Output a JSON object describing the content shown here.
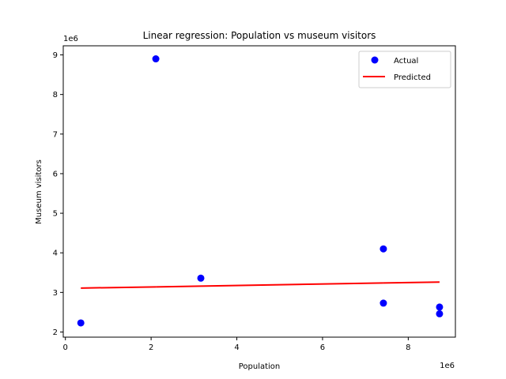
{
  "chart_data": {
    "type": "scatter",
    "title": "Linear regression: Population vs museum visitors",
    "xlabel": "Population",
    "ylabel": "Museum visitors",
    "x_offset_label": "1e6",
    "y_offset_label": "1e6",
    "xlim": [
      -0.05,
      9.1
    ],
    "ylim": [
      1.87,
      9.23
    ],
    "x_ticks": [
      0,
      2,
      4,
      6,
      8
    ],
    "x_tick_labels": [
      "0",
      "2",
      "4",
      "6",
      "8"
    ],
    "y_ticks": [
      2,
      3,
      4,
      5,
      6,
      7,
      8,
      9
    ],
    "y_tick_labels": [
      "2",
      "3",
      "4",
      "5",
      "6",
      "7",
      "8",
      "9"
    ],
    "grid": false,
    "legend": {
      "position": "top-right",
      "entries": [
        "Actual",
        "Predicted"
      ]
    },
    "series": [
      {
        "name": "Actual",
        "kind": "scatter",
        "color": "#0000ff",
        "points": [
          {
            "x": 0.36,
            "y": 2.23
          },
          {
            "x": 2.11,
            "y": 8.9
          },
          {
            "x": 3.16,
            "y": 3.36
          },
          {
            "x": 7.42,
            "y": 4.1
          },
          {
            "x": 7.42,
            "y": 2.73
          },
          {
            "x": 8.73,
            "y": 2.63
          },
          {
            "x": 8.73,
            "y": 2.46
          }
        ]
      },
      {
        "name": "Predicted",
        "kind": "line",
        "color": "#ff0000",
        "points": [
          {
            "x": 0.36,
            "y": 3.11
          },
          {
            "x": 2.11,
            "y": 3.14
          },
          {
            "x": 3.16,
            "y": 3.16
          },
          {
            "x": 7.42,
            "y": 3.24
          },
          {
            "x": 7.42,
            "y": 3.24
          },
          {
            "x": 8.73,
            "y": 3.26
          },
          {
            "x": 8.73,
            "y": 3.26
          }
        ]
      }
    ]
  }
}
